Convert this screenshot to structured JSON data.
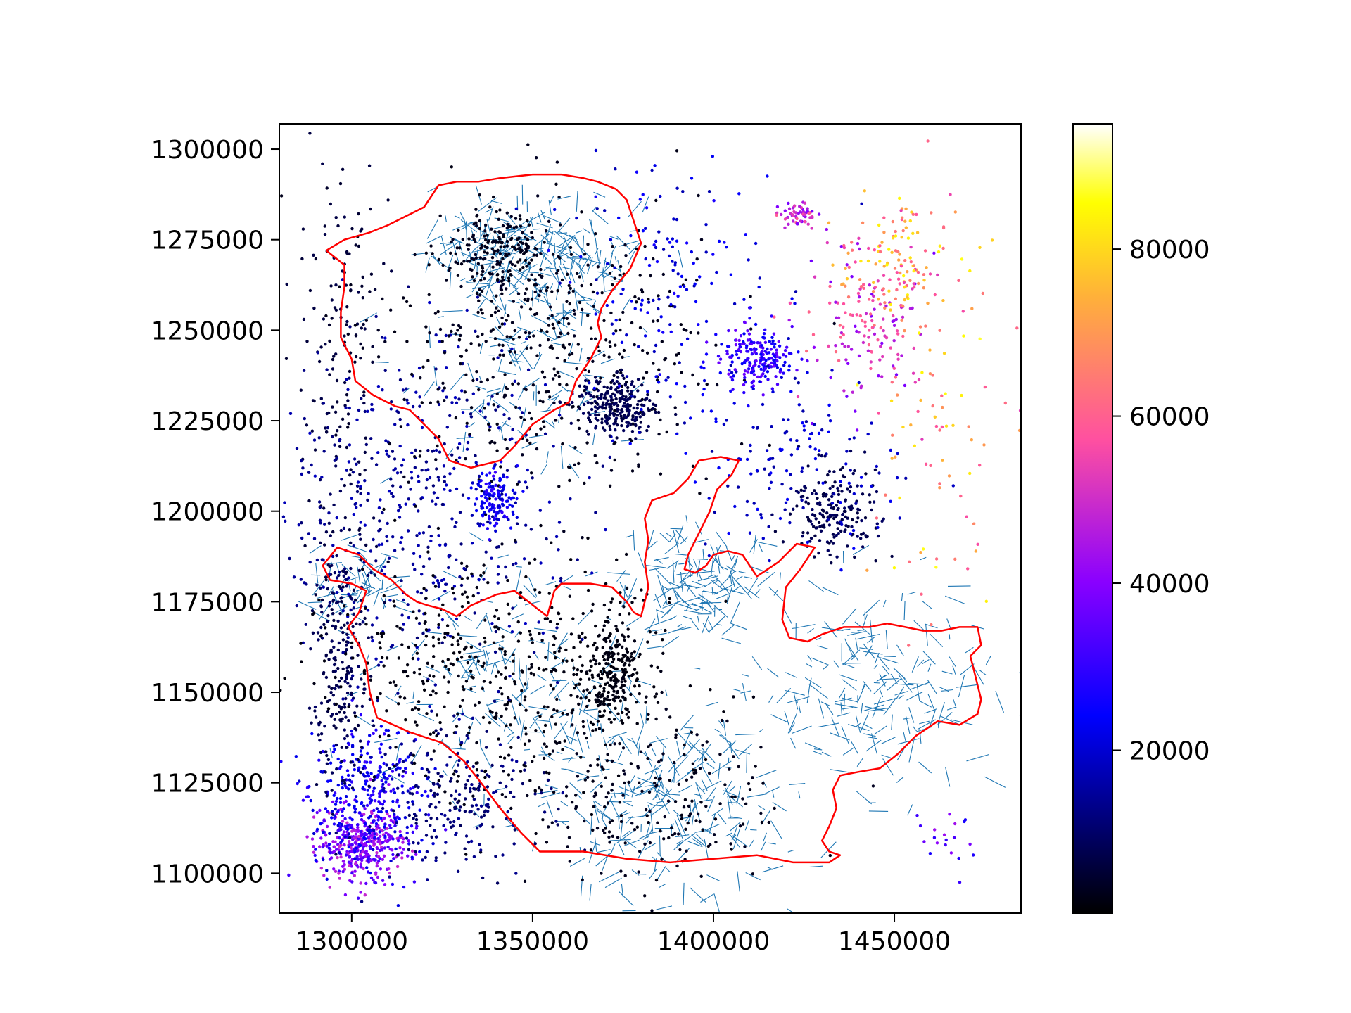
{
  "chart_data": {
    "type": "scatter",
    "title": "",
    "xlabel": "",
    "ylabel": "",
    "xlim": [
      1280000,
      1485000
    ],
    "ylim": [
      1089000,
      1307000
    ],
    "x_ticks": [
      {
        "value": 1300000,
        "label": "1300000"
      },
      {
        "value": 1350000,
        "label": "1350000"
      },
      {
        "value": 1400000,
        "label": "1400000"
      },
      {
        "value": 1450000,
        "label": "1450000"
      }
    ],
    "y_ticks": [
      {
        "value": 1100000,
        "label": "1100000"
      },
      {
        "value": 1125000,
        "label": "1125000"
      },
      {
        "value": 1150000,
        "label": "1150000"
      },
      {
        "value": 1175000,
        "label": "1175000"
      },
      {
        "value": 1200000,
        "label": "1200000"
      },
      {
        "value": 1225000,
        "label": "1225000"
      },
      {
        "value": 1250000,
        "label": "1250000"
      },
      {
        "value": 1275000,
        "label": "1275000"
      },
      {
        "value": 1300000,
        "label": "1300000"
      }
    ],
    "grid": false,
    "colorbar": {
      "colormap": "gnuplot2",
      "range": [
        500,
        95000
      ],
      "ticks": [
        {
          "value": 20000,
          "label": "20000"
        },
        {
          "value": 40000,
          "label": "40000"
        },
        {
          "value": 60000,
          "label": "60000"
        },
        {
          "value": 80000,
          "label": "80000"
        }
      ]
    },
    "boundary_color": "#ff0000",
    "network_color": "#1f77b4",
    "boundaries": [
      [
        [
          1293000,
          1272000
        ],
        [
          1298000,
          1275000
        ],
        [
          1305000,
          1277000
        ],
        [
          1310000,
          1279000
        ],
        [
          1316000,
          1282000
        ],
        [
          1320000,
          1284000
        ],
        [
          1324000,
          1290000
        ],
        [
          1329000,
          1291000
        ],
        [
          1335000,
          1291000
        ],
        [
          1341000,
          1292000
        ],
        [
          1350000,
          1293000
        ],
        [
          1358000,
          1293000
        ],
        [
          1364000,
          1292000
        ],
        [
          1368000,
          1291000
        ],
        [
          1373000,
          1289000
        ],
        [
          1376000,
          1286000
        ],
        [
          1378000,
          1280000
        ],
        [
          1380000,
          1274000
        ],
        [
          1377000,
          1267000
        ],
        [
          1372000,
          1261000
        ],
        [
          1369000,
          1256000
        ],
        [
          1368000,
          1252000
        ],
        [
          1369000,
          1248000
        ],
        [
          1366000,
          1242000
        ],
        [
          1362000,
          1236000
        ],
        [
          1360000,
          1230000
        ],
        [
          1356000,
          1228000
        ],
        [
          1350000,
          1224000
        ],
        [
          1345000,
          1218000
        ],
        [
          1341000,
          1214000
        ],
        [
          1333000,
          1212000
        ],
        [
          1327000,
          1214000
        ],
        [
          1324000,
          1220000
        ],
        [
          1320000,
          1224000
        ],
        [
          1316000,
          1228000
        ],
        [
          1312000,
          1229000
        ],
        [
          1306000,
          1232000
        ],
        [
          1301000,
          1236000
        ],
        [
          1300000,
          1242000
        ],
        [
          1297000,
          1248000
        ],
        [
          1297000,
          1255000
        ],
        [
          1298000,
          1262000
        ],
        [
          1298000,
          1268000
        ],
        [
          1293000,
          1272000
        ]
      ],
      [
        [
          1354000,
          1171000
        ],
        [
          1356000,
          1178000
        ],
        [
          1358000,
          1180000
        ],
        [
          1366000,
          1180000
        ],
        [
          1372000,
          1179000
        ],
        [
          1376000,
          1175000
        ],
        [
          1378000,
          1172000
        ],
        [
          1380000,
          1171000
        ],
        [
          1382000,
          1179000
        ],
        [
          1381000,
          1186000
        ],
        [
          1382000,
          1192000
        ],
        [
          1381000,
          1198000
        ],
        [
          1383000,
          1203000
        ],
        [
          1386000,
          1204000
        ],
        [
          1389000,
          1205000
        ],
        [
          1393000,
          1209000
        ],
        [
          1396000,
          1214000
        ],
        [
          1402000,
          1215000
        ],
        [
          1407000,
          1214000
        ],
        [
          1405000,
          1210000
        ],
        [
          1401000,
          1206000
        ],
        [
          1399000,
          1200000
        ],
        [
          1397000,
          1196000
        ],
        [
          1393000,
          1188000
        ],
        [
          1392000,
          1184000
        ],
        [
          1395000,
          1183000
        ],
        [
          1398000,
          1185000
        ],
        [
          1400000,
          1188000
        ],
        [
          1404000,
          1189000
        ],
        [
          1408000,
          1188000
        ],
        [
          1410000,
          1185000
        ],
        [
          1412000,
          1182000
        ],
        [
          1418000,
          1186000
        ],
        [
          1423000,
          1191000
        ],
        [
          1428000,
          1190000
        ],
        [
          1424000,
          1184000
        ],
        [
          1420000,
          1179000
        ],
        [
          1419000,
          1170000
        ],
        [
          1421000,
          1165000
        ],
        [
          1426000,
          1164000
        ],
        [
          1430000,
          1166000
        ],
        [
          1436000,
          1168000
        ],
        [
          1443000,
          1168000
        ],
        [
          1448000,
          1169000
        ],
        [
          1453000,
          1168000
        ],
        [
          1458000,
          1167000
        ],
        [
          1463000,
          1167000
        ],
        [
          1468000,
          1168000
        ],
        [
          1473000,
          1168000
        ],
        [
          1474000,
          1163000
        ],
        [
          1471000,
          1160000
        ],
        [
          1472000,
          1156000
        ],
        [
          1473000,
          1152000
        ],
        [
          1474000,
          1148000
        ],
        [
          1473000,
          1144000
        ],
        [
          1468000,
          1141000
        ],
        [
          1462000,
          1142000
        ],
        [
          1456000,
          1138000
        ],
        [
          1451000,
          1133000
        ],
        [
          1446000,
          1129000
        ],
        [
          1440000,
          1128000
        ],
        [
          1435000,
          1127000
        ],
        [
          1433000,
          1123000
        ],
        [
          1434000,
          1118000
        ],
        [
          1432000,
          1113000
        ],
        [
          1430000,
          1109000
        ],
        [
          1432000,
          1106000
        ],
        [
          1435000,
          1105000
        ],
        [
          1432000,
          1103000
        ],
        [
          1422000,
          1103000
        ],
        [
          1412000,
          1105000
        ],
        [
          1400000,
          1104000
        ],
        [
          1388000,
          1103000
        ],
        [
          1376000,
          1104000
        ],
        [
          1364000,
          1106000
        ],
        [
          1352000,
          1106000
        ],
        [
          1347000,
          1111000
        ],
        [
          1341000,
          1118000
        ],
        [
          1335000,
          1126000
        ],
        [
          1331000,
          1131000
        ],
        [
          1325000,
          1136000
        ],
        [
          1316000,
          1139000
        ],
        [
          1307000,
          1143000
        ],
        [
          1305000,
          1150000
        ],
        [
          1304000,
          1158000
        ],
        [
          1302000,
          1163000
        ],
        [
          1299000,
          1168000
        ],
        [
          1302000,
          1172000
        ],
        [
          1304000,
          1178000
        ],
        [
          1300000,
          1180000
        ],
        [
          1294000,
          1181000
        ],
        [
          1292000,
          1185000
        ],
        [
          1296000,
          1190000
        ],
        [
          1302000,
          1188000
        ],
        [
          1306000,
          1184000
        ],
        [
          1311000,
          1181000
        ],
        [
          1315000,
          1177000
        ],
        [
          1318000,
          1175000
        ],
        [
          1321000,
          1174000
        ],
        [
          1325000,
          1173000
        ],
        [
          1329000,
          1171000
        ],
        [
          1333000,
          1174000
        ],
        [
          1340000,
          1177000
        ],
        [
          1345000,
          1178000
        ],
        [
          1354000,
          1171000
        ]
      ]
    ],
    "clusters": [
      {
        "x": 1303000,
        "y": 1108000,
        "sx": 6000,
        "sy": 5000,
        "value": 40000,
        "n": 380
      },
      {
        "x": 1304000,
        "y": 1122000,
        "sx": 8000,
        "sy": 10000,
        "value": 25000,
        "n": 320
      },
      {
        "x": 1297000,
        "y": 1160000,
        "sx": 4000,
        "sy": 20000,
        "value": 8000,
        "n": 260
      },
      {
        "x": 1296000,
        "y": 1245000,
        "sx": 6000,
        "sy": 30000,
        "value": 6000,
        "n": 150
      },
      {
        "x": 1318000,
        "y": 1200000,
        "sx": 20000,
        "sy": 25000,
        "value": 15000,
        "n": 520
      },
      {
        "x": 1340000,
        "y": 1272000,
        "sx": 6000,
        "sy": 6000,
        "value": 3000,
        "n": 200
      },
      {
        "x": 1355000,
        "y": 1245000,
        "sx": 22000,
        "sy": 20000,
        "value": 3000,
        "n": 480
      },
      {
        "x": 1373000,
        "y": 1229000,
        "sx": 5000,
        "sy": 4000,
        "value": 8000,
        "n": 260
      },
      {
        "x": 1388000,
        "y": 1262000,
        "sx": 14000,
        "sy": 18000,
        "value": 22000,
        "n": 160
      },
      {
        "x": 1412000,
        "y": 1243000,
        "sx": 5000,
        "sy": 4000,
        "value": 30000,
        "n": 200
      },
      {
        "x": 1433000,
        "y": 1200000,
        "sx": 6000,
        "sy": 6000,
        "value": 8000,
        "n": 200
      },
      {
        "x": 1441000,
        "y": 1250000,
        "sx": 8000,
        "sy": 10000,
        "value": 50000,
        "n": 140
      },
      {
        "x": 1450000,
        "y": 1268000,
        "sx": 8000,
        "sy": 8000,
        "value": 68000,
        "n": 130
      },
      {
        "x": 1423000,
        "y": 1282000,
        "sx": 2500,
        "sy": 1500,
        "value": 48000,
        "n": 60
      },
      {
        "x": 1340000,
        "y": 1203000,
        "sx": 3000,
        "sy": 4000,
        "value": 25000,
        "n": 140
      },
      {
        "x": 1340000,
        "y": 1155000,
        "sx": 25000,
        "sy": 15000,
        "value": 2000,
        "n": 500
      },
      {
        "x": 1372000,
        "y": 1155000,
        "sx": 4000,
        "sy": 8000,
        "value": 2000,
        "n": 220
      },
      {
        "x": 1380000,
        "y": 1120000,
        "sx": 18000,
        "sy": 12000,
        "value": 3000,
        "n": 220
      },
      {
        "x": 1420000,
        "y": 1215000,
        "sx": 14000,
        "sy": 14000,
        "value": 20000,
        "n": 160
      },
      {
        "x": 1460000,
        "y": 1230000,
        "sx": 10000,
        "sy": 30000,
        "value": 70000,
        "n": 90
      },
      {
        "x": 1465000,
        "y": 1110000,
        "sx": 5000,
        "sy": 4000,
        "value": 35000,
        "n": 20
      },
      {
        "x": 1330000,
        "y": 1120000,
        "sx": 12000,
        "sy": 10000,
        "value": 12000,
        "n": 220
      }
    ],
    "network_hubs": [
      {
        "x": 1340000,
        "y": 1272000,
        "spread": 9000,
        "n": 140
      },
      {
        "x": 1362000,
        "y": 1270000,
        "spread": 9000,
        "n": 120
      },
      {
        "x": 1345000,
        "y": 1240000,
        "spread": 15000,
        "n": 120
      },
      {
        "x": 1395000,
        "y": 1180000,
        "spread": 10000,
        "n": 160
      },
      {
        "x": 1388000,
        "y": 1118000,
        "spread": 16000,
        "n": 260
      },
      {
        "x": 1445000,
        "y": 1150000,
        "spread": 16000,
        "n": 220
      },
      {
        "x": 1345000,
        "y": 1152000,
        "spread": 20000,
        "n": 200
      },
      {
        "x": 1300000,
        "y": 1180000,
        "spread": 6000,
        "n": 60
      }
    ]
  }
}
